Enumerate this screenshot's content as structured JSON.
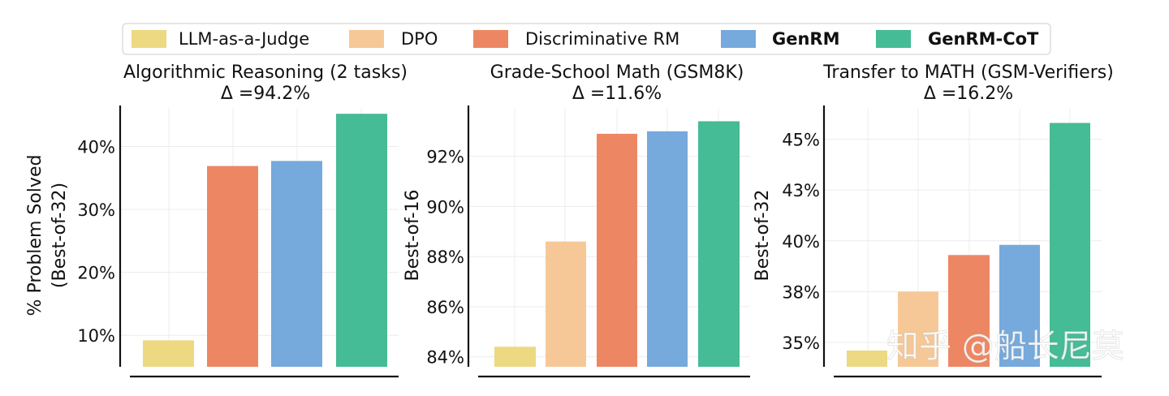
{
  "legend": [
    {
      "label": "LLM-as-a-Judge",
      "color": "#ecd982",
      "bold": false
    },
    {
      "label": "DPO",
      "color": "#f6c898",
      "bold": false
    },
    {
      "label": "Discriminative RM",
      "color": "#ed8763",
      "bold": false
    },
    {
      "label": "GenRM",
      "color": "#76a9dc",
      "bold": true
    },
    {
      "label": "GenRM-CoT",
      "color": "#45bb96",
      "bold": true
    }
  ],
  "watermark": "知乎 @船长尼莫",
  "chart_data": [
    {
      "type": "bar",
      "title": "Algorithmic Reasoning (2 tasks)",
      "subtitle": "Δ =94.2%",
      "ylabel": "% Problem Solved\n(Best-of-32)",
      "ylim": [
        5,
        46
      ],
      "yticks": [
        10,
        20,
        30,
        40
      ],
      "ytick_labels": [
        "10%",
        "20%",
        "30%",
        "40%"
      ],
      "series": [
        {
          "name": "LLM-as-a-Judge",
          "value": 9.2
        },
        {
          "name": "DPO",
          "value": null
        },
        {
          "name": "Discriminative RM",
          "value": 36.9
        },
        {
          "name": "GenRM",
          "value": 37.7
        },
        {
          "name": "GenRM-CoT",
          "value": 45.2
        }
      ]
    },
    {
      "type": "bar",
      "title": "Grade-School Math (GSM8K)",
      "subtitle": "Δ =11.6%",
      "ylabel": "Best-of-16",
      "ylim": [
        83.6,
        93.9
      ],
      "yticks": [
        84,
        86,
        88,
        90,
        92
      ],
      "ytick_labels": [
        "84%",
        "86%",
        "88%",
        "90%",
        "92%"
      ],
      "series": [
        {
          "name": "LLM-as-a-Judge",
          "value": 84.4
        },
        {
          "name": "DPO",
          "value": 88.6
        },
        {
          "name": "Discriminative RM",
          "value": 92.9
        },
        {
          "name": "GenRM",
          "value": 93.0
        },
        {
          "name": "GenRM-CoT",
          "value": 93.4
        }
      ]
    },
    {
      "type": "bar",
      "title": "Transfer to MATH (GSM-Verifiers)",
      "subtitle": "Δ =16.2%",
      "ylabel": "Best-of-32",
      "ylim": [
        33.8,
        46.5
      ],
      "yticks": [
        35,
        37.5,
        40,
        42.5,
        45
      ],
      "ytick_labels": [
        "35%",
        "38%",
        "40%",
        "43%",
        "45%"
      ],
      "series": [
        {
          "name": "LLM-as-a-Judge",
          "value": 34.6
        },
        {
          "name": "DPO",
          "value": 37.5
        },
        {
          "name": "Discriminative RM",
          "value": 39.3
        },
        {
          "name": "GenRM",
          "value": 39.8
        },
        {
          "name": "GenRM-CoT",
          "value": 45.8
        }
      ]
    }
  ]
}
